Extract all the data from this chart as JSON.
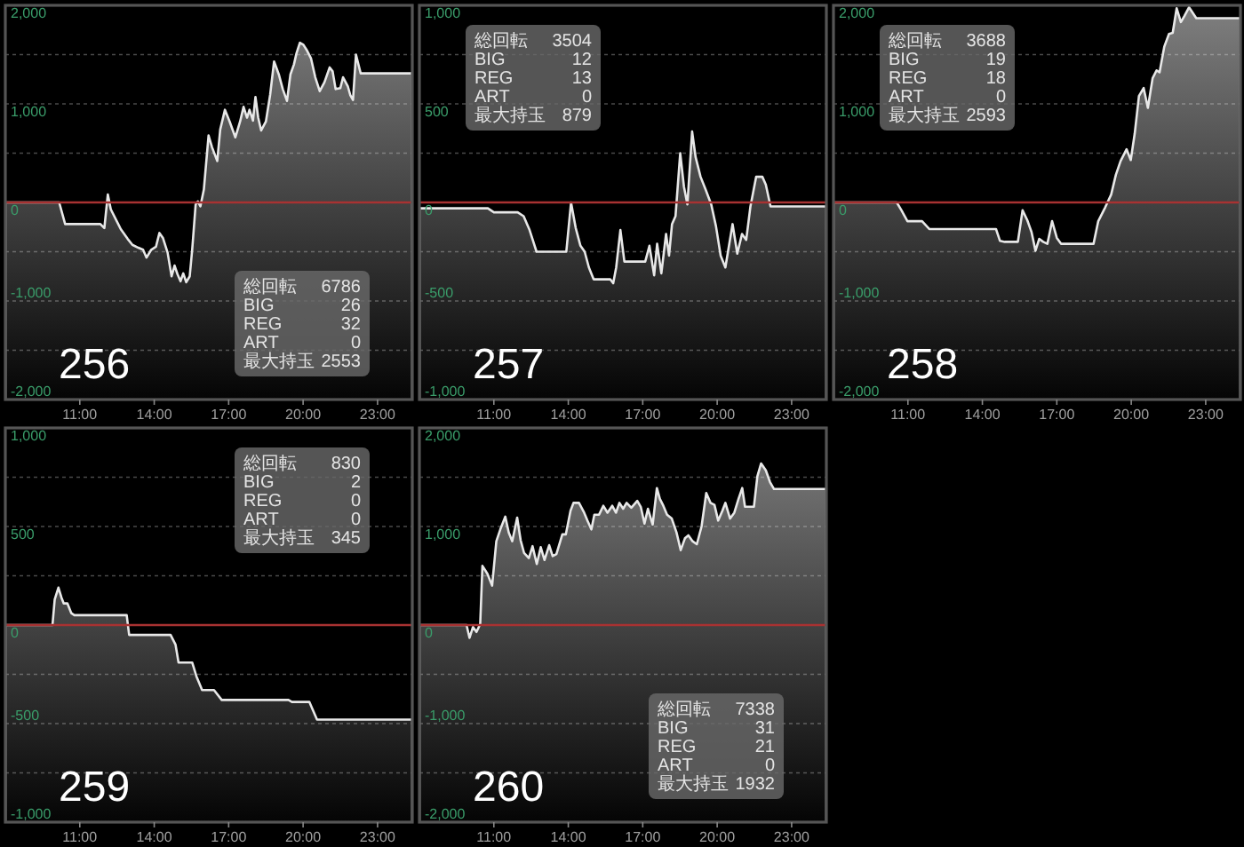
{
  "chart_data": [
    {
      "type": "area",
      "title": "256",
      "xlim": [
        8,
        24.4
      ],
      "xticks": [
        {
          "value": 11,
          "label": "11:00"
        },
        {
          "value": 14,
          "label": "14:00"
        },
        {
          "value": 17,
          "label": "17:00"
        },
        {
          "value": 20,
          "label": "20:00"
        },
        {
          "value": 23,
          "label": "23:00"
        }
      ],
      "ylim": [
        -2000,
        2000
      ],
      "yticks": [
        {
          "value": 2000,
          "label": "2,000"
        },
        {
          "value": 1500,
          "label": null
        },
        {
          "value": 1000,
          "label": "1,000"
        },
        {
          "value": 500,
          "label": null
        },
        0,
        {
          "value": -500,
          "label": null
        },
        {
          "value": -1000,
          "label": "-1,000"
        },
        {
          "value": -1500,
          "label": null
        },
        {
          "value": -2000,
          "label": "-2,000"
        }
      ],
      "grid": "y",
      "ref_lines": [
        {
          "axis": "y",
          "value": 0,
          "color": "#a83232"
        }
      ],
      "annotations": [
        "総回転 6786",
        "BIG 26",
        "REG 32",
        "ART 0",
        "最大持玉 2553"
      ],
      "x": [
        8,
        10.17,
        10.41,
        10.53,
        11.83,
        11.99,
        12.13,
        12.25,
        12.65,
        12.93,
        13.12,
        13.36,
        13.55,
        13.69,
        13.88,
        14.07,
        14.21,
        14.35,
        14.54,
        14.7,
        14.82,
        14.94,
        15.06,
        15.17,
        15.29,
        15.43,
        15.53,
        15.67,
        15.76,
        15.86,
        16,
        16.19,
        16.33,
        16.54,
        16.66,
        16.85,
        17.04,
        17.27,
        17.46,
        17.6,
        17.74,
        17.84,
        17.98,
        18.08,
        18.19,
        18.31,
        18.5,
        18.67,
        18.83,
        19.02,
        19.18,
        19.35,
        19.49,
        19.63,
        19.73,
        19.87,
        20.01,
        20.16,
        20.32,
        20.49,
        20.67,
        20.86,
        21.07,
        21.19,
        21.31,
        21.5,
        21.61,
        21.8,
        21.9,
        22.01,
        22.13,
        22.32,
        24.4
      ],
      "series": [
        {
          "color": "#e8e8e8",
          "values": [
            0,
            0,
            -220,
            -220,
            -220,
            -260,
            80,
            -70,
            -270,
            -370,
            -430,
            -460,
            -480,
            -560,
            -480,
            -450,
            -310,
            -360,
            -510,
            -750,
            -640,
            -730,
            -800,
            -720,
            -810,
            -750,
            -480,
            -20,
            10,
            -40,
            130,
            680,
            560,
            420,
            740,
            940,
            820,
            660,
            820,
            970,
            860,
            940,
            830,
            1070,
            860,
            730,
            820,
            1090,
            1430,
            1300,
            1150,
            1030,
            1300,
            1400,
            1510,
            1620,
            1600,
            1540,
            1460,
            1270,
            1130,
            1220,
            1370,
            1330,
            1150,
            1160,
            1270,
            1180,
            1090,
            1040,
            1500,
            1310,
            1310
          ]
        }
      ]
    },
    {
      "type": "area",
      "title": "257",
      "xlim": [
        8,
        24.4
      ],
      "xticks": [
        {
          "value": 11,
          "label": "11:00"
        },
        {
          "value": 14,
          "label": "14:00"
        },
        {
          "value": 17,
          "label": "17:00"
        },
        {
          "value": 20,
          "label": "20:00"
        },
        {
          "value": 23,
          "label": "23:00"
        }
      ],
      "ylim": [
        -1000,
        1000
      ],
      "yticks": [
        {
          "value": 1000,
          "label": "1,000"
        },
        {
          "value": 750,
          "label": null
        },
        500,
        {
          "value": 250,
          "label": null
        },
        0,
        {
          "value": -250,
          "label": null
        },
        -500,
        {
          "value": -750,
          "label": null
        },
        {
          "value": -1000,
          "label": "-1,000"
        }
      ],
      "grid": "y",
      "ref_lines": [
        {
          "axis": "y",
          "value": 0,
          "color": "#a83232"
        }
      ],
      "annotations": [
        "総回転 3504",
        "BIG 12",
        "REG 13",
        "ART 0",
        "最大持玉 879"
      ],
      "x": [
        8,
        10.76,
        11,
        11.96,
        12.2,
        12.44,
        12.72,
        13.92,
        14.11,
        14.3,
        14.49,
        14.66,
        14.83,
        15.02,
        15.69,
        15.81,
        15.93,
        16.1,
        16.26,
        16.41,
        17.1,
        17.27,
        17.46,
        17.58,
        17.75,
        17.94,
        18.06,
        18.18,
        18.32,
        18.51,
        18.66,
        18.8,
        18.99,
        19.13,
        19.33,
        19.52,
        19.76,
        19.95,
        20.14,
        20.33,
        20.62,
        20.81,
        21,
        21.17,
        21.34,
        21.57,
        21.82,
        21.96,
        22.15,
        24.4
      ],
      "series": [
        {
          "color": "#e8e8e8",
          "values": [
            -30,
            -30,
            -50,
            -50,
            -70,
            -140,
            -250,
            -250,
            0,
            -130,
            -220,
            -250,
            -330,
            -390,
            -390,
            -410,
            -330,
            -140,
            -300,
            -300,
            -300,
            -220,
            -370,
            -210,
            -360,
            -160,
            -270,
            -110,
            -70,
            250,
            80,
            -10,
            360,
            230,
            130,
            70,
            -10,
            -120,
            -270,
            -330,
            -110,
            -260,
            -160,
            -190,
            -20,
            130,
            130,
            90,
            -20,
            -20
          ]
        }
      ]
    },
    {
      "type": "area",
      "title": "258",
      "xlim": [
        8,
        24.4
      ],
      "xticks": [
        {
          "value": 11,
          "label": "11:00"
        },
        {
          "value": 14,
          "label": "14:00"
        },
        {
          "value": 17,
          "label": "17:00"
        },
        {
          "value": 20,
          "label": "20:00"
        },
        {
          "value": 23,
          "label": "23:00"
        }
      ],
      "ylim": [
        -2000,
        2000
      ],
      "yticks": [
        {
          "value": 2000,
          "label": "2,000"
        },
        {
          "value": 1500,
          "label": null
        },
        {
          "value": 1000,
          "label": "1,000"
        },
        {
          "value": 500,
          "label": null
        },
        0,
        {
          "value": -500,
          "label": null
        },
        {
          "value": -1000,
          "label": "-1,000"
        },
        {
          "value": -1500,
          "label": null
        },
        {
          "value": -2000,
          "label": "-2,000"
        }
      ],
      "grid": "y",
      "ref_lines": [
        {
          "axis": "y",
          "value": 0,
          "color": "#a83232"
        }
      ],
      "annotations": [
        "総回転 3688",
        "BIG 19",
        "REG 18",
        "ART 0",
        "最大持玉 2593"
      ],
      "x": [
        8,
        10.55,
        10.74,
        10.98,
        11.57,
        11.86,
        14.55,
        14.71,
        14.9,
        15.43,
        15.62,
        15.81,
        15.98,
        16.14,
        16.29,
        16.45,
        16.62,
        16.81,
        17,
        17.17,
        18.48,
        18.67,
        18.95,
        19.19,
        19.38,
        19.57,
        19.81,
        19.98,
        20.14,
        20.31,
        20.5,
        20.67,
        20.86,
        21.02,
        21.14,
        21.33,
        21.52,
        21.67,
        21.83,
        22,
        22.14,
        22.33,
        22.62,
        24.4
      ],
      "series": [
        {
          "color": "#e8e8e8",
          "values": [
            0,
            0,
            -80,
            -190,
            -190,
            -270,
            -270,
            -390,
            -400,
            -400,
            -80,
            -180,
            -300,
            -490,
            -370,
            -400,
            -420,
            -190,
            -360,
            -420,
            -420,
            -190,
            -50,
            80,
            280,
            420,
            540,
            430,
            700,
            1080,
            1160,
            960,
            1260,
            1340,
            1320,
            1580,
            1710,
            1720,
            1970,
            1830,
            1890,
            1980,
            1870,
            1870
          ]
        }
      ]
    },
    {
      "type": "area",
      "title": "259",
      "xlim": [
        8,
        24.4
      ],
      "xticks": [
        {
          "value": 11,
          "label": "11:00"
        },
        {
          "value": 14,
          "label": "14:00"
        },
        {
          "value": 17,
          "label": "17:00"
        },
        {
          "value": 20,
          "label": "20:00"
        },
        {
          "value": 23,
          "label": "23:00"
        }
      ],
      "ylim": [
        -1000,
        1000
      ],
      "yticks": [
        {
          "value": 1000,
          "label": "1,000"
        },
        {
          "value": 750,
          "label": null
        },
        500,
        {
          "value": 250,
          "label": null
        },
        0,
        {
          "value": -250,
          "label": null
        },
        -500,
        {
          "value": -750,
          "label": null
        },
        {
          "value": -1000,
          "label": "-1,000"
        }
      ],
      "grid": "y",
      "ref_lines": [
        {
          "axis": "y",
          "value": 0,
          "color": "#a83232"
        }
      ],
      "annotations": [
        "総回転 830",
        "BIG 2",
        "REG 0",
        "ART 0",
        "最大持玉 345"
      ],
      "x": [
        8,
        9.9,
        9.99,
        10.14,
        10.26,
        10.35,
        10.5,
        10.66,
        10.78,
        12.89,
        12.99,
        14.66,
        14.86,
        14.98,
        15.53,
        15.7,
        15.93,
        16.41,
        16.72,
        19.41,
        19.55,
        20.25,
        20.56,
        24.4
      ],
      "series": [
        {
          "color": "#e8e8e8",
          "values": [
            0,
            0,
            130,
            190,
            140,
            110,
            110,
            60,
            50,
            50,
            -50,
            -50,
            -100,
            -190,
            -190,
            -260,
            -330,
            -330,
            -380,
            -380,
            -390,
            -390,
            -480,
            -480
          ]
        }
      ]
    },
    {
      "type": "area",
      "title": "260",
      "xlim": [
        8,
        24.4
      ],
      "xticks": [
        {
          "value": 11,
          "label": "11:00"
        },
        {
          "value": 14,
          "label": "14:00"
        },
        {
          "value": 17,
          "label": "17:00"
        },
        {
          "value": 20,
          "label": "20:00"
        },
        {
          "value": 23,
          "label": "23:00"
        }
      ],
      "ylim": [
        -2000,
        2000
      ],
      "yticks": [
        {
          "value": 2000,
          "label": "2,000"
        },
        {
          "value": 1500,
          "label": null
        },
        {
          "value": 1000,
          "label": "1,000"
        },
        {
          "value": 500,
          "label": null
        },
        0,
        {
          "value": -500,
          "label": null
        },
        {
          "value": -1000,
          "label": "-1,000"
        },
        {
          "value": -1500,
          "label": null
        },
        {
          "value": -2000,
          "label": "-2,000"
        }
      ],
      "grid": "y",
      "ref_lines": [
        {
          "axis": "y",
          "value": 0,
          "color": "#a83232"
        }
      ],
      "annotations": [
        "総回転 7338",
        "BIG 31",
        "REG 21",
        "ART 0",
        "最大持玉 1932"
      ],
      "x": [
        8,
        9.9,
        10.02,
        10.16,
        10.3,
        10.45,
        10.54,
        10.74,
        10.93,
        11.1,
        11.26,
        11.46,
        11.6,
        11.74,
        11.94,
        12.08,
        12.22,
        12.41,
        12.56,
        12.73,
        12.89,
        13.04,
        13.23,
        13.37,
        13.52,
        13.76,
        13.9,
        14.09,
        14.21,
        14.43,
        14.62,
        14.77,
        14.93,
        15.05,
        15.24,
        15.41,
        15.58,
        15.77,
        15.92,
        16.06,
        16.21,
        16.35,
        16.54,
        16.78,
        16.92,
        17.07,
        17.21,
        17.4,
        17.57,
        17.69,
        17.83,
        17.98,
        18.17,
        18.36,
        18.53,
        18.7,
        18.84,
        19.01,
        19.18,
        19.37,
        19.56,
        19.73,
        19.89,
        20.04,
        20.21,
        20.33,
        20.52,
        20.69,
        20.86,
        21.01,
        21.12,
        21.48,
        21.62,
        21.77,
        21.96,
        22.13,
        22.29,
        24.4
      ],
      "series": [
        {
          "color": "#e8e8e8",
          "values": [
            0,
            0,
            -130,
            -20,
            -70,
            10,
            600,
            520,
            400,
            850,
            970,
            1100,
            940,
            850,
            1090,
            860,
            730,
            680,
            800,
            620,
            790,
            660,
            810,
            700,
            720,
            920,
            920,
            1160,
            1240,
            1240,
            1150,
            1060,
            970,
            1120,
            1120,
            1210,
            1140,
            1210,
            1140,
            1240,
            1180,
            1240,
            1190,
            1260,
            1200,
            1030,
            1180,
            1020,
            1390,
            1280,
            1210,
            1120,
            1080,
            940,
            760,
            880,
            910,
            850,
            820,
            1000,
            1340,
            1240,
            1220,
            1060,
            1160,
            1240,
            1080,
            1140,
            1280,
            1390,
            1200,
            1200,
            1510,
            1640,
            1570,
            1450,
            1380,
            1380
          ]
        }
      ]
    }
  ]
}
